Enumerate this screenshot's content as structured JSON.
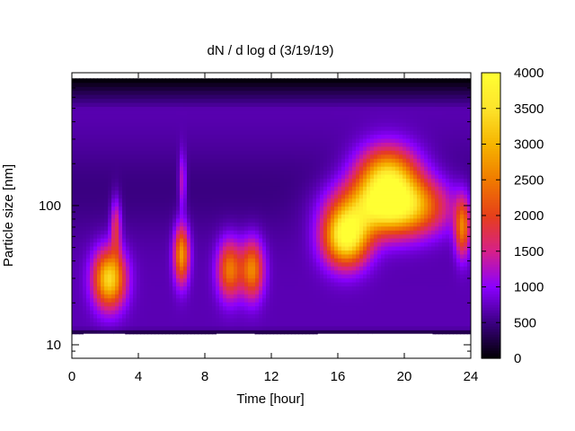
{
  "chart_data": {
    "type": "heatmap",
    "title": "dN / d log d (3/19/19)",
    "xlabel": "Time [hour]",
    "ylabel": "Particle size [nm]",
    "xlim": [
      0,
      24
    ],
    "ylim": [
      8,
      900
    ],
    "y_scale": "log",
    "grid": false,
    "x_ticks": [
      0,
      4,
      8,
      12,
      16,
      20,
      24
    ],
    "x_tick_labels": [
      "0",
      "4",
      "8",
      "12",
      "16",
      "20",
      "24"
    ],
    "y_ticks": [
      10,
      100
    ],
    "y_tick_labels": [
      "10",
      "100"
    ],
    "colorbar": {
      "min": 0,
      "max": 4000,
      "ticks": [
        0,
        500,
        1000,
        1500,
        2000,
        2500,
        3000,
        3500,
        4000
      ],
      "tick_labels": [
        "0",
        "500",
        "1000",
        "1500",
        "2000",
        "2500",
        "3000",
        "3500",
        "4000"
      ],
      "colormap": [
        "#000000",
        "#3a0081",
        "#8a00ff",
        "#d6208a",
        "#e63f1a",
        "#f07a00",
        "#f6b400",
        "#fde32b",
        "#ffff33"
      ]
    },
    "size_range_nm": [
      12,
      820
    ],
    "time_range_hours": [
      0,
      24
    ],
    "background_level": 700,
    "upper_band": {
      "size_nm": 130,
      "level": 500
    },
    "events": [
      {
        "time_start": 1.2,
        "time_end": 3.3,
        "size_center_nm": 30,
        "peak_value": 3200
      },
      {
        "time_start": 2.3,
        "time_end": 3.0,
        "size_center_nm": 70,
        "peak_value": 1600
      },
      {
        "time_start": 6.1,
        "time_end": 7.1,
        "size_center_nm": 45,
        "peak_value": 2600
      },
      {
        "time_start": 6.4,
        "time_end": 6.9,
        "size_center_nm": 150,
        "peak_value": 1300
      },
      {
        "time_start": 8.7,
        "time_end": 10.3,
        "size_center_nm": 35,
        "peak_value": 2300
      },
      {
        "time_start": 10.1,
        "time_end": 11.6,
        "size_center_nm": 35,
        "peak_value": 2400
      },
      {
        "time_start": 15.0,
        "time_end": 18.0,
        "size_center_nm": 60,
        "peak_value": 3700
      },
      {
        "time_start": 16.0,
        "time_end": 22.5,
        "size_center_nm": 100,
        "peak_value": 4000
      },
      {
        "time_start": 17.0,
        "time_end": 21.0,
        "size_center_nm": 170,
        "peak_value": 2800
      },
      {
        "time_start": 23.0,
        "time_end": 24.0,
        "size_center_nm": 70,
        "peak_value": 2300
      }
    ],
    "missing_low_size_segments": [
      {
        "time_start": 0.7,
        "time_end": 2.5
      },
      {
        "time_start": 2.5,
        "time_end": 3.2
      },
      {
        "time_start": 8.7,
        "time_end": 11.0
      },
      {
        "time_start": 14.8,
        "time_end": 17.2
      },
      {
        "time_start": 17.2,
        "time_end": 18.1
      },
      {
        "time_start": 18.1,
        "time_end": 19.0
      },
      {
        "time_start": 19.0,
        "time_end": 21.7
      }
    ]
  }
}
